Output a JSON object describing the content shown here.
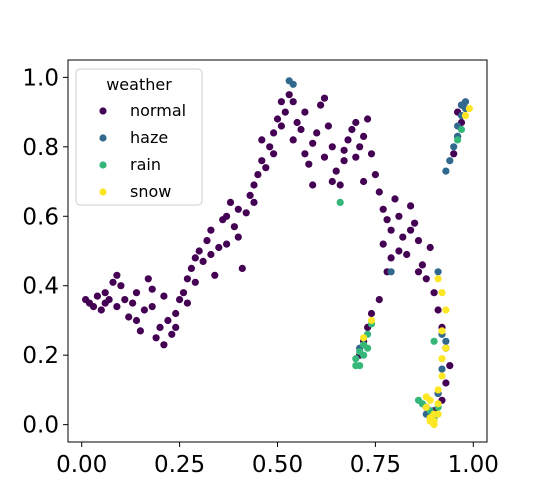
{
  "chart_data": {
    "type": "scatter",
    "title": "",
    "xlabel": "",
    "ylabel": "",
    "xlim": [
      -0.035,
      1.035
    ],
    "ylim": [
      -0.05,
      1.05
    ],
    "x_ticks": [
      "0.00",
      "0.25",
      "0.50",
      "0.75",
      "1.00"
    ],
    "x_tick_values": [
      0.0,
      0.25,
      0.5,
      0.75,
      1.0
    ],
    "y_ticks": [
      "0.0",
      "0.2",
      "0.4",
      "0.6",
      "0.8",
      "1.0"
    ],
    "y_tick_values": [
      0.0,
      0.2,
      0.4,
      0.6,
      0.8,
      1.0
    ],
    "grid": false,
    "legend": {
      "title": "weather",
      "placement": "top-left",
      "entries": [
        "normal",
        "haze",
        "rain",
        "snow"
      ]
    },
    "series": [
      {
        "name": "normal",
        "color": "#440154",
        "points": [
          [
            0.01,
            0.36
          ],
          [
            0.02,
            0.35
          ],
          [
            0.03,
            0.34
          ],
          [
            0.04,
            0.37
          ],
          [
            0.05,
            0.33
          ],
          [
            0.06,
            0.38
          ],
          [
            0.07,
            0.36
          ],
          [
            0.08,
            0.41
          ],
          [
            0.09,
            0.43
          ],
          [
            0.1,
            0.4
          ],
          [
            0.11,
            0.36
          ],
          [
            0.12,
            0.31
          ],
          [
            0.13,
            0.35
          ],
          [
            0.14,
            0.3
          ],
          [
            0.15,
            0.27
          ],
          [
            0.16,
            0.33
          ],
          [
            0.17,
            0.42
          ],
          [
            0.18,
            0.39
          ],
          [
            0.19,
            0.25
          ],
          [
            0.2,
            0.28
          ],
          [
            0.21,
            0.23
          ],
          [
            0.22,
            0.3
          ],
          [
            0.23,
            0.26
          ],
          [
            0.24,
            0.32
          ],
          [
            0.25,
            0.36
          ],
          [
            0.26,
            0.38
          ],
          [
            0.27,
            0.42
          ],
          [
            0.28,
            0.45
          ],
          [
            0.29,
            0.48
          ],
          [
            0.3,
            0.5
          ],
          [
            0.31,
            0.47
          ],
          [
            0.32,
            0.53
          ],
          [
            0.33,
            0.56
          ],
          [
            0.34,
            0.43
          ],
          [
            0.35,
            0.51
          ],
          [
            0.36,
            0.59
          ],
          [
            0.37,
            0.6
          ],
          [
            0.38,
            0.64
          ],
          [
            0.39,
            0.57
          ],
          [
            0.4,
            0.54
          ],
          [
            0.41,
            0.45
          ],
          [
            0.42,
            0.61
          ],
          [
            0.43,
            0.66
          ],
          [
            0.44,
            0.69
          ],
          [
            0.45,
            0.72
          ],
          [
            0.46,
            0.76
          ],
          [
            0.47,
            0.74
          ],
          [
            0.48,
            0.8
          ],
          [
            0.49,
            0.84
          ],
          [
            0.5,
            0.88
          ],
          [
            0.51,
            0.86
          ],
          [
            0.52,
            0.9
          ],
          [
            0.53,
            0.95
          ],
          [
            0.54,
            0.93
          ],
          [
            0.55,
            0.87
          ],
          [
            0.56,
            0.85
          ],
          [
            0.57,
            0.78
          ],
          [
            0.58,
            0.75
          ],
          [
            0.59,
            0.81
          ],
          [
            0.6,
            0.84
          ],
          [
            0.61,
            0.92
          ],
          [
            0.62,
            0.94
          ],
          [
            0.63,
            0.86
          ],
          [
            0.64,
            0.8
          ],
          [
            0.65,
            0.73
          ],
          [
            0.66,
            0.69
          ],
          [
            0.67,
            0.76
          ],
          [
            0.68,
            0.82
          ],
          [
            0.69,
            0.85
          ],
          [
            0.7,
            0.87
          ],
          [
            0.71,
            0.8
          ],
          [
            0.72,
            0.83
          ],
          [
            0.73,
            0.88
          ],
          [
            0.74,
            0.78
          ],
          [
            0.75,
            0.72
          ],
          [
            0.76,
            0.67
          ],
          [
            0.77,
            0.62
          ],
          [
            0.78,
            0.59
          ],
          [
            0.79,
            0.56
          ],
          [
            0.8,
            0.65
          ],
          [
            0.81,
            0.6
          ],
          [
            0.82,
            0.54
          ],
          [
            0.83,
            0.49
          ],
          [
            0.84,
            0.63
          ],
          [
            0.85,
            0.58
          ],
          [
            0.86,
            0.53
          ],
          [
            0.87,
            0.46
          ],
          [
            0.88,
            0.42
          ],
          [
            0.89,
            0.51
          ],
          [
            0.9,
            0.38
          ],
          [
            0.91,
            0.33
          ],
          [
            0.92,
            0.28
          ],
          [
            0.93,
            0.22
          ],
          [
            0.94,
            0.17
          ],
          [
            0.93,
            0.12
          ],
          [
            0.92,
            0.07
          ],
          [
            0.9,
            0.04
          ],
          [
            0.89,
            0.02
          ],
          [
            0.88,
            0.05
          ],
          [
            0.91,
            0.09
          ],
          [
            0.74,
            0.32
          ],
          [
            0.73,
            0.28
          ],
          [
            0.72,
            0.24
          ],
          [
            0.71,
            0.2
          ],
          [
            0.76,
            0.36
          ],
          [
            0.78,
            0.44
          ],
          [
            0.79,
            0.48
          ],
          [
            0.06,
            0.35
          ],
          [
            0.09,
            0.34
          ],
          [
            0.14,
            0.38
          ],
          [
            0.18,
            0.34
          ],
          [
            0.21,
            0.37
          ],
          [
            0.24,
            0.28
          ],
          [
            0.27,
            0.35
          ],
          [
            0.29,
            0.41
          ],
          [
            0.33,
            0.49
          ],
          [
            0.37,
            0.52
          ],
          [
            0.4,
            0.62
          ],
          [
            0.44,
            0.64
          ],
          [
            0.46,
            0.82
          ],
          [
            0.49,
            0.78
          ],
          [
            0.51,
            0.93
          ],
          [
            0.54,
            0.82
          ],
          [
            0.57,
            0.9
          ],
          [
            0.59,
            0.69
          ],
          [
            0.62,
            0.77
          ],
          [
            0.64,
            0.7
          ],
          [
            0.67,
            0.79
          ],
          [
            0.7,
            0.77
          ],
          [
            0.72,
            0.7
          ],
          [
            0.77,
            0.52
          ],
          [
            0.81,
            0.5
          ],
          [
            0.84,
            0.56
          ],
          [
            0.86,
            0.44
          ],
          [
            0.95,
            0.78
          ],
          [
            0.96,
            0.83
          ],
          [
            0.97,
            0.87
          ],
          [
            0.96,
            0.9
          ],
          [
            0.97,
            0.92
          ]
        ]
      },
      {
        "name": "haze",
        "color": "#31688e",
        "points": [
          [
            0.53,
            0.99
          ],
          [
            0.54,
            0.98
          ],
          [
            0.97,
            0.92
          ],
          [
            0.98,
            0.93
          ],
          [
            0.98,
            0.91
          ],
          [
            0.97,
            0.89
          ],
          [
            0.96,
            0.86
          ],
          [
            0.96,
            0.83
          ],
          [
            0.95,
            0.8
          ],
          [
            0.94,
            0.76
          ],
          [
            0.93,
            0.73
          ],
          [
            0.92,
            0.26
          ],
          [
            0.93,
            0.24
          ],
          [
            0.91,
            0.09
          ],
          [
            0.88,
            0.03
          ],
          [
            0.92,
            0.16
          ],
          [
            0.79,
            0.44
          ],
          [
            0.91,
            0.44
          ],
          [
            0.71,
            0.22
          ]
        ]
      },
      {
        "name": "rain",
        "color": "#35b779",
        "points": [
          [
            0.66,
            0.64
          ],
          [
            0.7,
            0.17
          ],
          [
            0.7,
            0.19
          ],
          [
            0.71,
            0.21
          ],
          [
            0.71,
            0.17
          ],
          [
            0.72,
            0.2
          ],
          [
            0.72,
            0.23
          ],
          [
            0.73,
            0.26
          ],
          [
            0.74,
            0.29
          ],
          [
            0.87,
            0.06
          ],
          [
            0.89,
            0.04
          ],
          [
            0.9,
            0.02
          ],
          [
            0.91,
            0.05
          ],
          [
            0.97,
            0.85
          ],
          [
            0.96,
            0.82
          ],
          [
            0.86,
            0.07
          ],
          [
            0.73,
            0.22
          ],
          [
            0.9,
            0.24
          ]
        ]
      },
      {
        "name": "snow",
        "color": "#fde725",
        "points": [
          [
            0.88,
            0.05
          ],
          [
            0.89,
            0.01
          ],
          [
            0.89,
            0.02
          ],
          [
            0.9,
            0.0
          ],
          [
            0.9,
            0.01
          ],
          [
            0.9,
            0.03
          ],
          [
            0.91,
            0.06
          ],
          [
            0.91,
            0.1
          ],
          [
            0.92,
            0.14
          ],
          [
            0.92,
            0.19
          ],
          [
            0.93,
            0.22
          ],
          [
            0.93,
            0.33
          ],
          [
            0.92,
            0.38
          ],
          [
            0.99,
            0.91
          ],
          [
            0.98,
            0.89
          ],
          [
            0.89,
            0.07
          ],
          [
            0.88,
            0.08
          ],
          [
            0.91,
            0.03
          ],
          [
            0.72,
            0.25
          ],
          [
            0.74,
            0.3
          ],
          [
            0.91,
            0.42
          ],
          [
            0.92,
            0.27
          ]
        ]
      }
    ]
  }
}
